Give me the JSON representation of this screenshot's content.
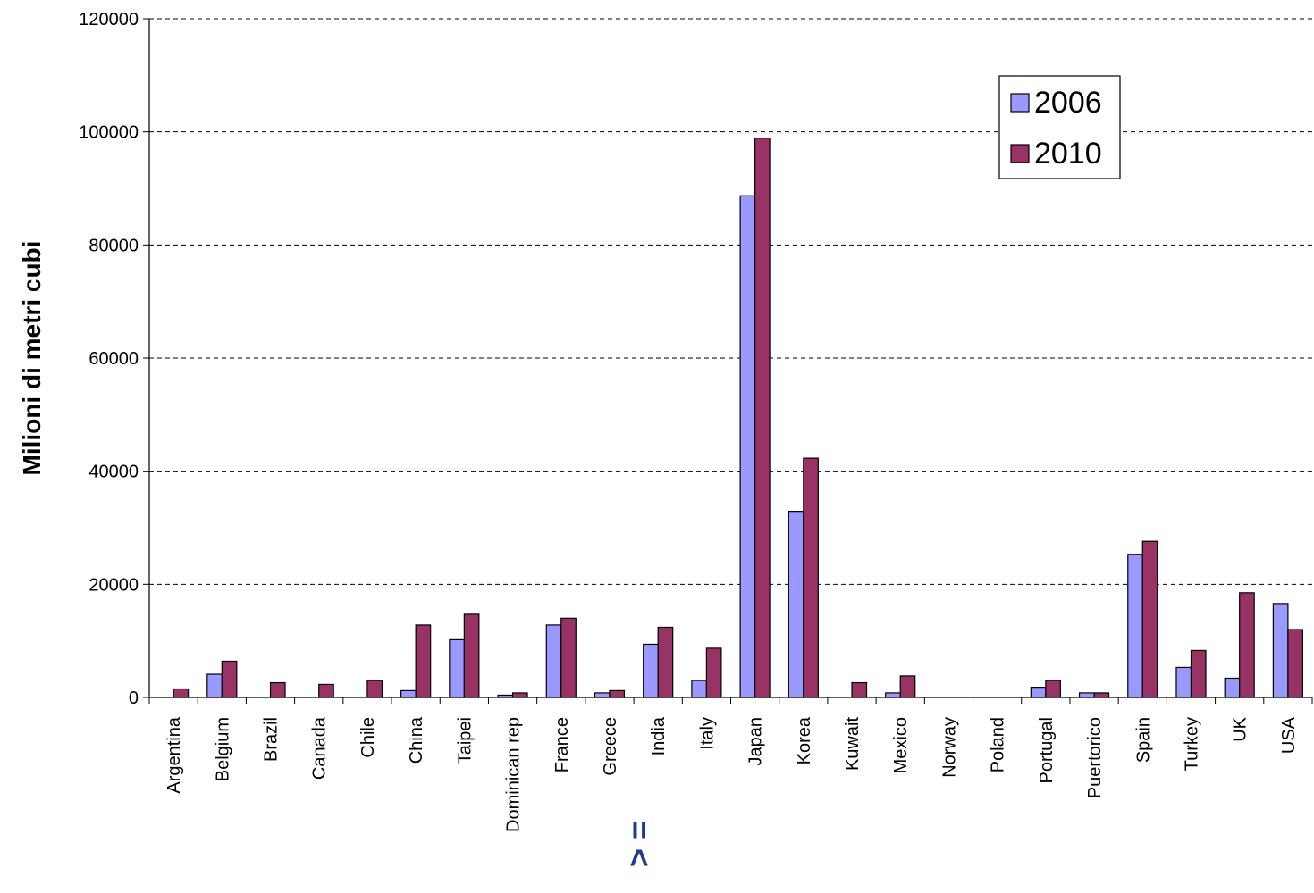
{
  "chart_data": {
    "type": "bar",
    "title": "",
    "xlabel": "",
    "ylabel": "Milioni di metri cubi",
    "ylim": [
      0,
      120000
    ],
    "yticks": [
      0,
      20000,
      40000,
      60000,
      80000,
      100000,
      120000
    ],
    "grid": true,
    "legend_position": "top-right",
    "categories": [
      "Argentina",
      "Belgium",
      "Brazil",
      "Canada",
      "Chile",
      "China",
      "Taipei",
      "Dominican rep",
      "France",
      "Greece",
      "India",
      "Italy",
      "Japan",
      "Korea",
      "Kuwait",
      "Mexico",
      "Norway",
      "Poland",
      "Portugal",
      "Puertorico",
      "Spain",
      "Turkey",
      "UK",
      "USA"
    ],
    "series": [
      {
        "name": "2006",
        "color": "#9999ff",
        "values": [
          0,
          4100,
          0,
          0,
          0,
          1200,
          10200,
          400,
          12800,
          800,
          9400,
          3000,
          88700,
          32900,
          0,
          800,
          0,
          0,
          1800,
          800,
          25300,
          5300,
          3400,
          16600
        ]
      },
      {
        "name": "2010",
        "color": "#993366",
        "values": [
          1500,
          6400,
          2600,
          2300,
          3000,
          12800,
          14700,
          800,
          14000,
          1200,
          12400,
          8700,
          98900,
          42300,
          2600,
          3800,
          0,
          0,
          3000,
          800,
          27600,
          8300,
          18500,
          12000
        ]
      }
    ],
    "annotation": {
      "text": "> =",
      "color": "#1f3a93"
    }
  }
}
